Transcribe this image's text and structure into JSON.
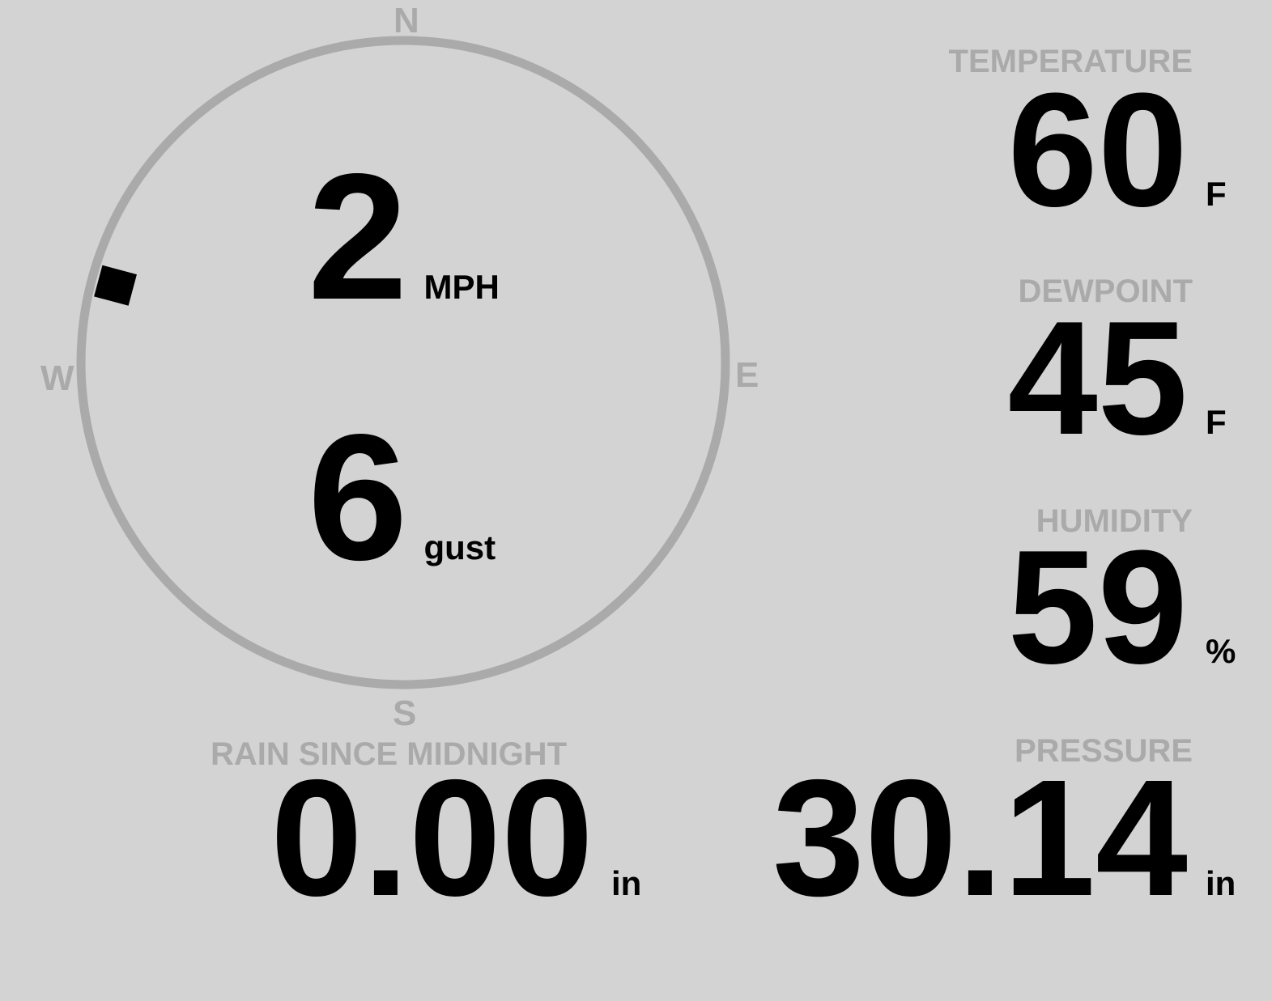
{
  "colors": {
    "background": "#d3d3d3",
    "label": "#aaaaaa",
    "value": "#000000",
    "compass_ring": "#aaaaaa"
  },
  "wind": {
    "speed": "2",
    "speed_unit": "MPH",
    "gust": "6",
    "gust_unit": "gust",
    "direction_degrees": 285,
    "cardinals": {
      "n": "N",
      "e": "E",
      "s": "S",
      "w": "W"
    }
  },
  "temperature": {
    "label": "TEMPERATURE",
    "value": "60",
    "unit": "F"
  },
  "dewpoint": {
    "label": "DEWPOINT",
    "value": "45",
    "unit": "F"
  },
  "humidity": {
    "label": "HUMIDITY",
    "value": "59",
    "unit": "%"
  },
  "rain": {
    "label": "RAIN SINCE MIDNIGHT",
    "value": "0.00",
    "unit": "in"
  },
  "pressure": {
    "label": "PRESSURE",
    "value": "30.14",
    "unit": "in"
  }
}
